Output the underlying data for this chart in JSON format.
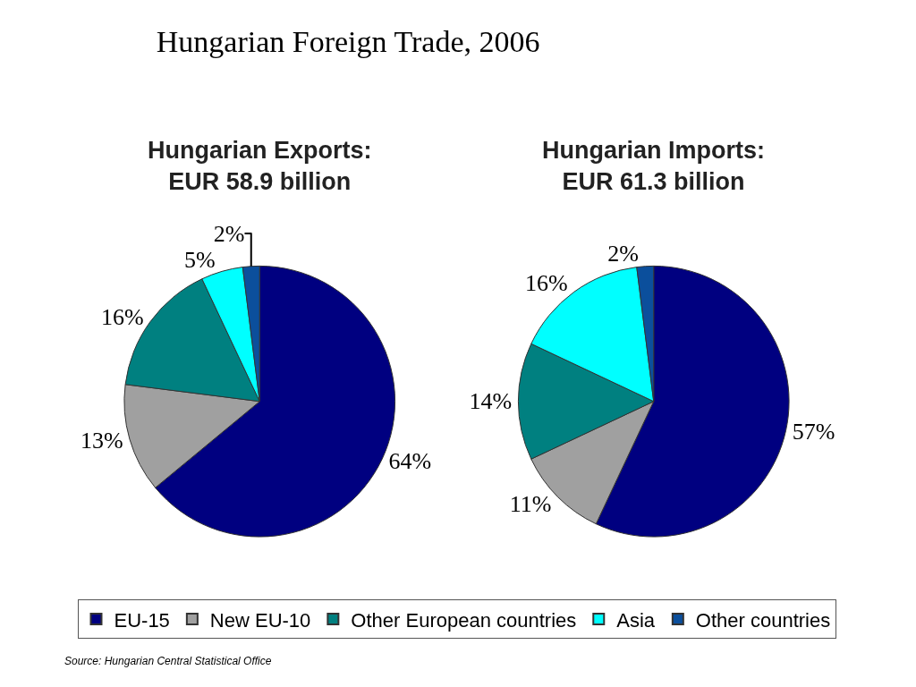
{
  "chart_data": [
    {
      "type": "pie",
      "title": "Hungarian Foreign Trade, 2006",
      "subtitle": "Hungarian Exports:\nEUR 58.9 billion",
      "categories": [
        "EU-15",
        "New EU-10",
        "Other European countries",
        "Asia",
        "Other countries"
      ],
      "values": [
        64,
        13,
        16,
        5,
        2
      ],
      "value_labels": [
        "64%",
        "13%",
        "16%",
        "5%",
        "2%"
      ],
      "colors": [
        "#000080",
        "#a0a0a0",
        "#008080",
        "#00ffff",
        "#0b4f9c"
      ],
      "legend": "bottom",
      "annotations": [
        "Source: Hungarian Central Statistical Office"
      ]
    },
    {
      "type": "pie",
      "subtitle": "Hungarian Imports:\nEUR 61.3 billion",
      "values": [
        57,
        11,
        14,
        16,
        2
      ],
      "value_labels": [
        "57%",
        "11%",
        "14%",
        "16%",
        "2%"
      ],
      "colors": [
        "#000080",
        "#a0a0a0",
        "#008080",
        "#00ffff",
        "#0b4f9c"
      ]
    }
  ]
}
